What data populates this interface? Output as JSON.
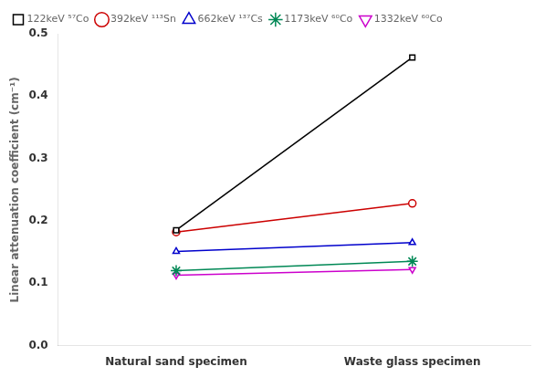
{
  "chart_data": {
    "type": "line",
    "categories": [
      "Natural sand specimen",
      "Waste glass specimen"
    ],
    "series": [
      {
        "name": "122keV ⁵⁷Co",
        "color": "#000000",
        "marker": "square",
        "line_style": "solid",
        "values": [
          0.185,
          0.462
        ]
      },
      {
        "name": "392keV ¹¹³Sn",
        "color": "#cc0000",
        "marker": "circle",
        "line_style": "solid",
        "values": [
          0.182,
          0.228
        ]
      },
      {
        "name": "662keV ¹³⁷Cs",
        "color": "#0000cc",
        "marker": "triangle-up",
        "line_style": "solid",
        "values": [
          0.151,
          0.165
        ]
      },
      {
        "name": "1173keV ⁶⁰Co",
        "color": "#008855",
        "marker": "star",
        "line_style": "solid",
        "values": [
          0.12,
          0.135
        ]
      },
      {
        "name": "1332keV ⁶⁰Co",
        "color": "#cc00cc",
        "marker": "triangle-down",
        "line_style": "solid",
        "values": [
          0.113,
          0.122
        ]
      }
    ],
    "ylabel": "Linear attenuation coefficient (cm⁻¹)",
    "ylim": [
      0.0,
      0.5
    ],
    "yticks": [
      {
        "value": 0,
        "label": "0.0"
      },
      0.1,
      0.2,
      0.3,
      0.4,
      0.5
    ],
    "grid": false,
    "legend": "upper left"
  }
}
